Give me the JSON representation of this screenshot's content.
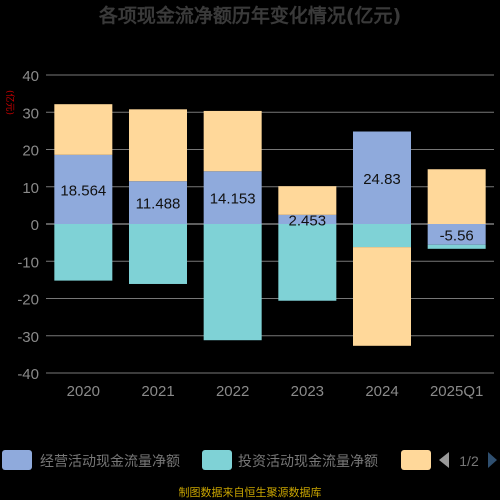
{
  "chart_data": {
    "type": "bar",
    "stacked": true,
    "title": "各项现金流净额历年变化情况(亿元)",
    "y_unit_label": "(亿元)",
    "categories": [
      "2020",
      "2021",
      "2022",
      "2023",
      "2024",
      "2025Q1"
    ],
    "ylim": [
      -40,
      40
    ],
    "yticks": [
      -40,
      -30,
      -20,
      -10,
      0,
      10,
      20,
      30,
      40
    ],
    "grid": true,
    "legend_position": "bottom",
    "legend_page": "1/2",
    "series": [
      {
        "name": "经营活动现金流量净额",
        "color": "#8faadc",
        "values": [
          18.564,
          11.488,
          14.153,
          2.453,
          24.83,
          -5.56
        ]
      },
      {
        "name": "投资活动现金流量净额",
        "color": "#7fd2d6",
        "values": [
          -15.2,
          -16.1,
          -31.2,
          -20.6,
          -6.2,
          -1.1
        ]
      },
      {
        "name": "",
        "color": "#ffd89a",
        "values": [
          13.6,
          19.3,
          16.2,
          7.7,
          -26.5,
          14.7
        ]
      }
    ],
    "data_labels": [
      "18.564",
      "11.488",
      "14.153",
      "2.453",
      "24.83",
      "-5.56"
    ]
  },
  "footer_text": "制图数据来自恒生聚源数据库"
}
